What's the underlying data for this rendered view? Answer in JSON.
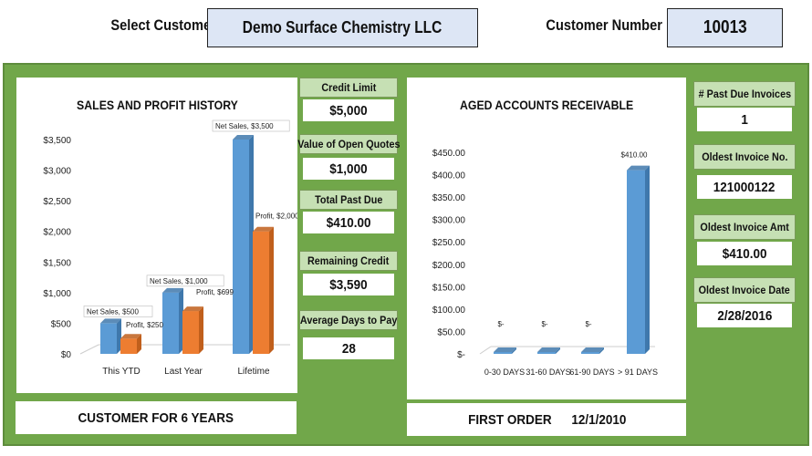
{
  "header": {
    "select_customer_label": "Select Customer",
    "customer_name": "Demo Surface Chemistry LLC",
    "customer_number_label": "Customer Number",
    "customer_number": "10013"
  },
  "metrics": [
    {
      "label": "Credit Limit",
      "value": "$5,000"
    },
    {
      "label": "Value of Open Quotes",
      "value": "$1,000"
    },
    {
      "label": "Total Past Due",
      "value": "$410.00"
    },
    {
      "label": "Remaining  Credit",
      "value": "$3,590"
    },
    {
      "label": "Average Days to Pay",
      "value": "28"
    }
  ],
  "invoice_stats": [
    {
      "label": "# Past Due Invoices",
      "value": "1"
    },
    {
      "label": "Oldest Invoice No.",
      "value": "121000122"
    },
    {
      "label": "Oldest Invoice Amt",
      "value": "$410.00"
    },
    {
      "label": "Oldest Invoice Date",
      "value": "2/28/2016"
    }
  ],
  "footer": {
    "customer_for": "CUSTOMER FOR 6 YEARS",
    "first_order_label": "FIRST ORDER",
    "first_order_date": "12/1/2010"
  },
  "colors": {
    "dashboard_bg": "#71a74a",
    "label_bg": "#c6e0b4",
    "net_sales": "#5b9bd5",
    "profit": "#ed7d31",
    "header_box": "#dde6f5"
  },
  "chart_data": [
    {
      "type": "bar",
      "title": "SALES AND PROFIT HISTORY",
      "categories": [
        "This YTD",
        "Last Year",
        "Lifetime"
      ],
      "series": [
        {
          "name": "Net Sales",
          "values": [
            500,
            1000,
            3500
          ],
          "labels": [
            "Net Sales, $500",
            "Net Sales, $1,000",
            "Net Sales, $3,500"
          ]
        },
        {
          "name": "Profit",
          "values": [
            250,
            699,
            2000
          ],
          "labels": [
            "Profit, $250",
            "Profit, $699",
            "Profit, $2,000"
          ]
        }
      ],
      "ylim": [
        0,
        3500
      ],
      "yticks": [
        "$0",
        "$500",
        "$1,000",
        "$1,500",
        "$2,000",
        "$2,500",
        "$3,000",
        "$3,500"
      ]
    },
    {
      "type": "bar",
      "title": "AGED ACCOUNTS RECEIVABLE",
      "categories": [
        "0-30 DAYS",
        "31-60 DAYS",
        "61-90 DAYS",
        "> 91 DAYS"
      ],
      "values": [
        0,
        0,
        0,
        410
      ],
      "value_labels": [
        "$-",
        "$-",
        "$-",
        "$410.00"
      ],
      "ylim": [
        0,
        450
      ],
      "yticks": [
        "$-",
        "$50.00",
        "$100.00",
        "$150.00",
        "$200.00",
        "$250.00",
        "$300.00",
        "$350.00",
        "$400.00",
        "$450.00"
      ]
    }
  ]
}
